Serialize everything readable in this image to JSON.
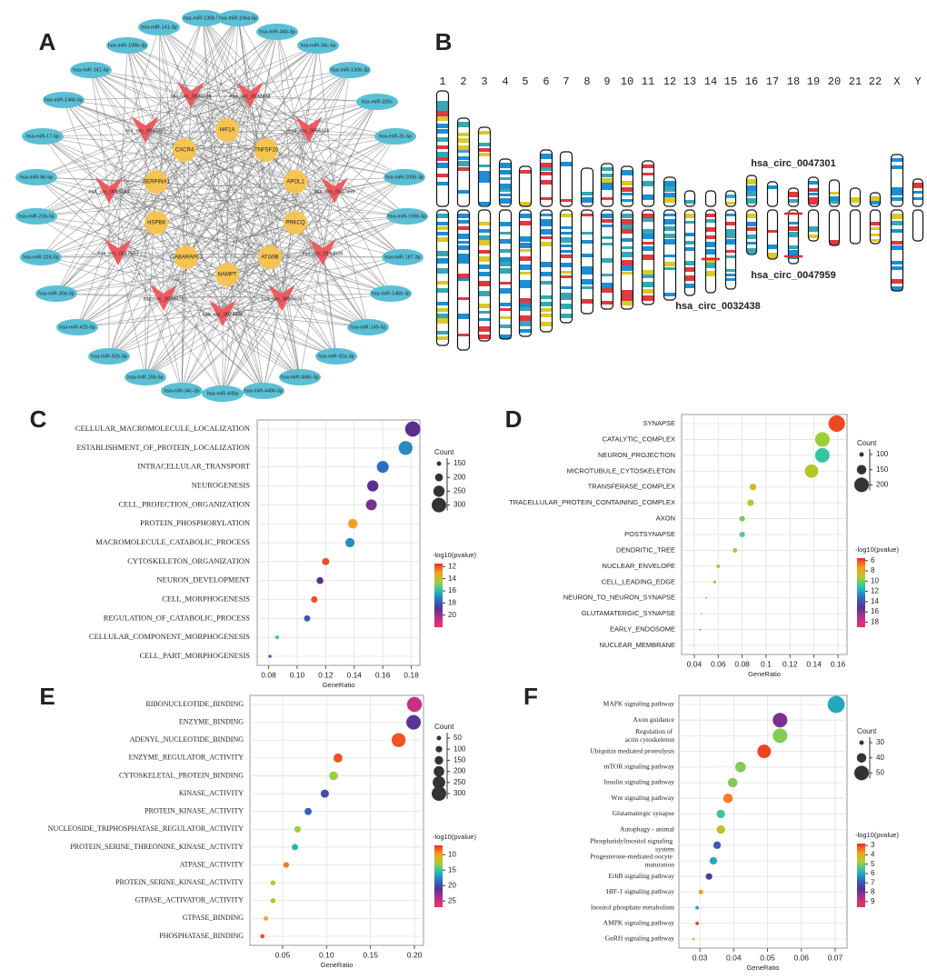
{
  "panels": [
    "A",
    "B",
    "C",
    "D",
    "E",
    "F"
  ],
  "network": {
    "mirnas": [
      "hsa-miR-130b-5p",
      "hsa-miR-106a-5p",
      "hsa-miR-141-3p",
      "hsa-miR-34b-3p",
      "hsa-miR-106b-3p",
      "hsa-miR-34c-5p",
      "hsa-miR-141-5p",
      "hsa-miR-130b-3p",
      "hsa-miR-146b-5p",
      "hsa-miR-320c",
      "hsa-miR-17-5p",
      "hsa-miR-31-5p",
      "hsa-miR-96-5p",
      "hsa-miR-200b-3p",
      "hsa-miR-20b-5p",
      "hsa-miR-199b-5p",
      "hsa-miR-224-5p",
      "hsa-miR-187-3p",
      "hsa-miR-30d-3p",
      "hsa-miR-146b-3p",
      "hsa-miR-425-5p",
      "hsa-miR-145-5p",
      "hsa-miR-92b-3p",
      "hsa-miR-92a-3p",
      "hsa-miR-15b-5p",
      "hsa-miR-449c-5p",
      "hsa-miR-34c-3p",
      "hsa-miR-449b-5p",
      "hsa-miR-449a"
    ],
    "circrnas": [
      "hsa_circ_0030326",
      "hsa_circ_0032438",
      "hsa_circ_0047301",
      "hsa_circ_0055101",
      "hsa_circ_0016169",
      "hsa_circ_0047959",
      "hsa_circ_0017583",
      "hsa_circ_0164606",
      "hsa_circ_0030976",
      "hsa_circ_0050608",
      "hsa_circ_0074368"
    ],
    "genes": [
      "HIF1A",
      "CXCR4",
      "TNFSF10",
      "SERPINA1",
      "APOL1",
      "HSPB8",
      "PRKCQ",
      "GABARAPL1",
      "ATG9B",
      "NAMPT"
    ]
  },
  "karyotype": {
    "chromosomes": [
      "1",
      "2",
      "3",
      "4",
      "5",
      "6",
      "7",
      "8",
      "9",
      "10",
      "11",
      "12",
      "13",
      "14",
      "15",
      "16",
      "17",
      "18",
      "19",
      "20",
      "21",
      "22",
      "X",
      "Y"
    ],
    "circ_labels": [
      "hsa_circ_0047301",
      "hsa_circ_0047959",
      "hsa_circ_0032438"
    ]
  },
  "chart_data": [
    {
      "type": "dot",
      "xlabel": "GeneRatio",
      "categories": [
        "CELLULAR_MACROMOLECULE_LOCALIZATION",
        "ESTABLISHMENT_OF_PROTEIN_LOCALIZATION",
        "INTRACELLULAR_TRANSPORT",
        "NEUROGENESIS",
        "CELL_PROJECTION_ORGANIZATION",
        "PROTEIN_PHOSPHORYLATION",
        "MACROMOLECULE_CATABOLIC_PROCESS",
        "CYTOSKELETON_ORGANIZATION",
        "NEURON_DEVELOPMENT",
        "CELL_MORPHOGENESIS",
        "REGULATION_OF_CATABOLIC_PROCESS",
        "CELLULAR_COMPONENT_MORPHOGENESIS",
        "CELL_PART_MORPHOGENESIS"
      ],
      "values": [
        0.181,
        0.176,
        0.16,
        0.153,
        0.152,
        0.139,
        0.137,
        0.12,
        0.116,
        0.112,
        0.107,
        0.086,
        0.081
      ],
      "count": [
        310,
        290,
        260,
        250,
        245,
        225,
        220,
        190,
        185,
        180,
        175,
        140,
        130
      ],
      "log10p": [
        19,
        17,
        17.5,
        19,
        19.5,
        13,
        17,
        12,
        19,
        12,
        18,
        15.5,
        17.5
      ],
      "xlim": [
        0.072,
        0.186
      ],
      "xticks": [
        0.08,
        {
          "value": 0.1,
          "label": "0.10"
        },
        0.12,
        0.14,
        0.16,
        0.18
      ],
      "size_title": "Count",
      "size_ticks": [
        150,
        200,
        250,
        300
      ],
      "color_title": "-log10(pvalue)",
      "color_ticks": [
        12,
        14,
        16,
        18,
        20
      ],
      "colorlim": [
        11.5,
        22
      ],
      "colormap": [
        "#ee2a24",
        "#f7a01d",
        "#a6cf2f",
        "#22c1b8",
        "#2a6ec4",
        "#5a2f92",
        "#b5318f",
        "#f0325a"
      ]
    },
    {
      "type": "dot",
      "xlabel": "GeneRatio",
      "categories": [
        "SYNAPSE",
        "CATALYTIC_COMPLEX",
        "NEURON_PROJECTION",
        "MICROTUBULE_CYTOSKELETON",
        "TRANSFERASE_COMPLEX",
        "TRACELLULAR_PROTEIN_CONTAINING_COMPLEX",
        "AXON",
        "POSTSYNAPSE",
        "DENDRITIC_TREE",
        "NUCLEAR_ENVELOPE",
        "CELL_LEADING_EDGE",
        "NEURON_TO_NEURON_SYNAPSE",
        "GLUTAMATERGIC_SYNAPSE",
        "EARLY_ENDOSOME",
        "NUCLEAR_MEMBRANE"
      ],
      "values": [
        0.159,
        0.147,
        0.147,
        0.138,
        0.089,
        0.087,
        0.08,
        0.08,
        0.074,
        0.06,
        0.057,
        0.05,
        0.046,
        0.045,
        0.039
      ],
      "count": [
        220,
        200,
        200,
        190,
        120,
        120,
        110,
        110,
        100,
        90,
        85,
        75,
        70,
        70,
        65
      ],
      "log10p": [
        6,
        9.5,
        11,
        9,
        8.5,
        9,
        10,
        10.5,
        8.5,
        9,
        9.5,
        9,
        9.5,
        6,
        6.5
      ],
      "xlim": [
        0.0294,
        0.1676
      ],
      "xticks": [
        0.04,
        0.06,
        0.08,
        0.1,
        0.12,
        0.14,
        0.16
      ],
      "size_title": "Count",
      "size_ticks": [
        100,
        150,
        200
      ],
      "color_title": "-log10(pvalue)",
      "color_ticks": [
        6,
        8,
        10,
        12,
        14,
        16,
        18
      ],
      "colorlim": [
        5.5,
        19
      ],
      "colormap": [
        "#ee2a24",
        "#f7a01d",
        "#a6cf2f",
        "#22c1b8",
        "#2a6ec4",
        "#5a2f92",
        "#b5318f",
        "#f0325a"
      ]
    },
    {
      "type": "dot",
      "xlabel": "GeneRatio",
      "categories": [
        "RIBONUCLEOTIDE_BINDING",
        "ENZYME_BINDING",
        "ADENYL_NUCLEOTIDE_BINDING",
        "ENZYME_REGULATOR_ACTIVITY",
        "CYTOSKELETAL_PROTEIN_BINDING",
        "KINASE_ACTIVITY",
        "PROTEIN_KINASE_ACTIVITY",
        "NUCLEOSIDE_TRIPHOSPHATASE_REGULATOR_ACTIVITY",
        "PROTEIN_SERINE_THREONINE_KINASE_ACTIVITY",
        "ATPASE_ACTIVITY",
        "PROTEIN_SERINE_KINASE_ACTIVITY",
        "GTPASE_ACTIVATOR_ACTIVITY",
        "GTPASE_BINDING",
        "PHOSPHATASE_BINDING"
      ],
      "values": [
        0.2,
        0.199,
        0.182,
        0.113,
        0.108,
        0.098,
        0.079,
        0.067,
        0.064,
        0.054,
        0.039,
        0.039,
        0.031,
        0.027
      ],
      "count": [
        310,
        300,
        285,
        160,
        155,
        140,
        115,
        100,
        95,
        80,
        60,
        60,
        50,
        45
      ],
      "log10p": [
        25,
        21,
        8,
        8,
        13,
        20,
        19,
        13,
        16,
        9,
        12,
        11.5,
        10,
        8
      ],
      "xlim": [
        0.0128,
        0.2103
      ],
      "xticks": [
        0.05,
        {
          "value": 0.1,
          "label": "0.10"
        },
        0.15,
        {
          "value": 0.2,
          "label": "0.20"
        }
      ],
      "size_title": "Count",
      "size_ticks": [
        50,
        100,
        150,
        200,
        250,
        300
      ],
      "color_title": "-log10(pvalue)",
      "color_ticks": [
        10,
        15,
        20,
        25
      ],
      "colorlim": [
        7,
        27
      ],
      "colormap": [
        "#ee2a24",
        "#f7a01d",
        "#a6cf2f",
        "#22c1b8",
        "#2a6ec4",
        "#5a2f92",
        "#b5318f",
        "#f0325a"
      ]
    },
    {
      "type": "dot",
      "xlabel": "GeneRatio",
      "categories": [
        "MAPK signaling pathway",
        "Axon guidance",
        "Regulation of actin cytoskeleton",
        "Ubiquitin mediated proteolysis",
        "mTOR signaling pathway",
        "Insulin signaling pathway",
        "Wnt signaling pathway",
        "Glutamatergic synapse",
        "Autophagy - animal",
        "Phosphatidylinositol signaling system",
        "Progesterone-mediated oocyte maturation",
        "ErbB signaling pathway",
        "HIF-1 signaling pathway",
        "Inositol phosphate metabolism",
        "AMPK signaling pathway",
        "GnRH signaling pathway"
      ],
      "values": [
        0.0703,
        0.0537,
        0.0537,
        0.049,
        0.042,
        0.0397,
        0.0383,
        0.0362,
        0.0362,
        0.0351,
        0.034,
        0.0327,
        0.0303,
        0.0292,
        0.0292,
        0.0281
      ],
      "count": [
        55,
        50,
        50,
        48,
        42,
        40,
        40,
        38,
        38,
        36,
        36,
        34,
        30,
        28,
        28,
        26
      ],
      "log10p": [
        6,
        8,
        5,
        3,
        5,
        5,
        3.5,
        5.5,
        4.5,
        7,
        6,
        7.5,
        3.8,
        6,
        3,
        4
      ],
      "xlim": [
        0.0238,
        0.0735
      ],
      "xticks": [
        0.03,
        0.04,
        0.05,
        0.06,
        0.07
      ],
      "size_title": "Count",
      "size_ticks": [
        30,
        40,
        50
      ],
      "color_title": "-log10(pvalue)",
      "color_ticks": [
        3,
        4,
        5,
        6,
        7,
        8,
        9
      ],
      "colorlim": [
        2.8,
        9.6
      ],
      "colormap": [
        "#ee2a24",
        "#f7a01d",
        "#a6cf2f",
        "#22c1b8",
        "#2a6ec4",
        "#5a2f92",
        "#b5318f",
        "#f0325a"
      ]
    }
  ]
}
